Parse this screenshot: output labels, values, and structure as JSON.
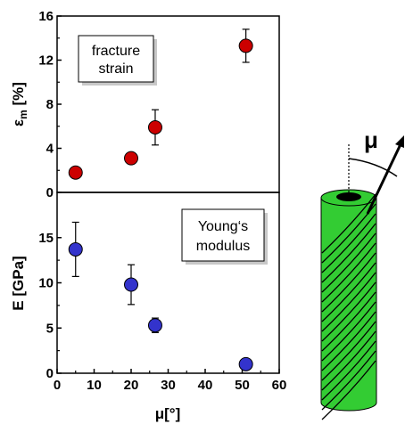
{
  "chart_data": [
    {
      "type": "scatter",
      "panel": "top",
      "ylabel": "ε",
      "ylabel_sub": "m",
      "ylabel_unit": " [%]",
      "ylim": [
        0,
        16
      ],
      "yticks": [
        0,
        4,
        8,
        12,
        16
      ],
      "xlim": [
        0,
        60
      ],
      "annotation": [
        "fracture",
        "strain"
      ],
      "marker_color": "#cc0000",
      "points": [
        {
          "x": 5,
          "y": 1.8,
          "err": null
        },
        {
          "x": 20,
          "y": 3.1,
          "err": null
        },
        {
          "x": 26.5,
          "y": 5.9,
          "err": 1.6
        },
        {
          "x": 51,
          "y": 13.3,
          "err": 1.5
        }
      ]
    },
    {
      "type": "scatter",
      "panel": "bottom",
      "ylabel": "E [GPa]",
      "ylim": [
        0,
        20
      ],
      "yticks": [
        0,
        5,
        10,
        15
      ],
      "xlim": [
        0,
        60
      ],
      "xticks": [
        0,
        10,
        20,
        30,
        40,
        50,
        60
      ],
      "xlabel": "μ[°]",
      "annotation": [
        "Young‘s",
        "modulus"
      ],
      "marker_color": "#3333cc",
      "points": [
        {
          "x": 5,
          "y": 13.7,
          "err": 3.0
        },
        {
          "x": 20,
          "y": 9.8,
          "err": 2.2
        },
        {
          "x": 26.5,
          "y": 5.3,
          "err": 0.8
        },
        {
          "x": 51,
          "y": 1.0,
          "err": null
        }
      ]
    }
  ],
  "diagram": {
    "angle_label": "μ",
    "fiber_color": "#33cc33",
    "lumen_color": "#000000"
  }
}
